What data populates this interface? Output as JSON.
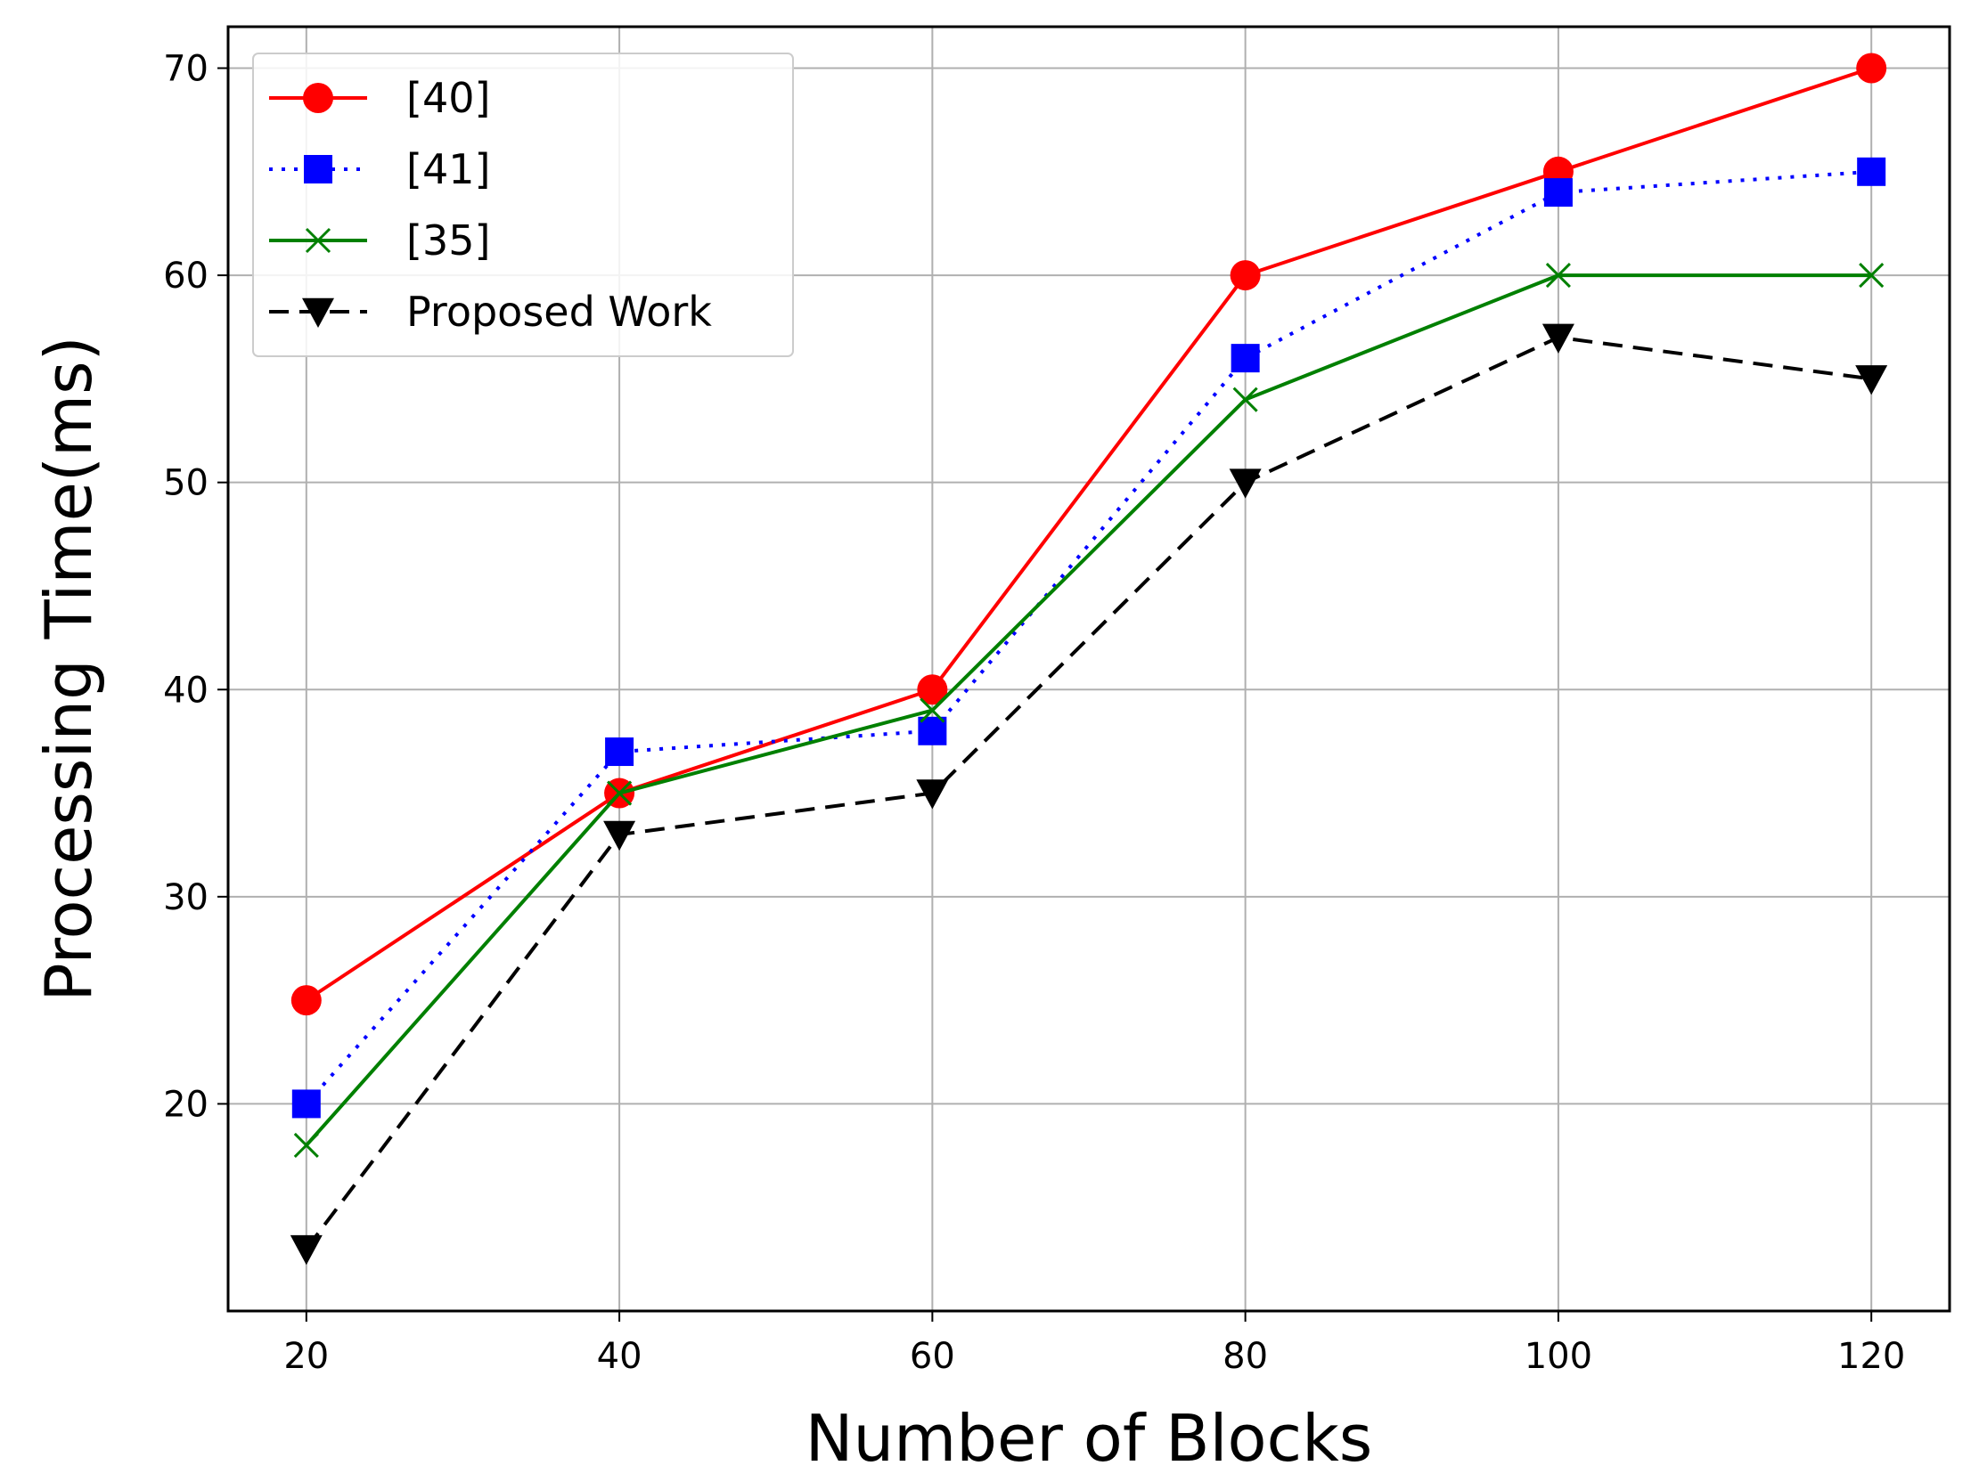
{
  "chart_data": {
    "type": "line",
    "title": "",
    "xlabel": "Number of Blocks",
    "ylabel": "Processing Time(ms)",
    "x": [
      20,
      40,
      60,
      80,
      100,
      120
    ],
    "xticks": [
      "20",
      "40",
      "60",
      "80",
      "100",
      "120"
    ],
    "yticks": [
      "20",
      "30",
      "40",
      "50",
      "60",
      "70"
    ],
    "xlim": [
      15,
      125
    ],
    "ylim": [
      10,
      72
    ],
    "grid": true,
    "legend_position": "upper-left",
    "series": [
      {
        "name": "[40]",
        "values": [
          25,
          35,
          40,
          60,
          65,
          70
        ],
        "color": "#ff0000",
        "line_style": "solid",
        "marker": "circle"
      },
      {
        "name": "[41]",
        "values": [
          20,
          37,
          38,
          56,
          64,
          65
        ],
        "color": "#0000ff",
        "line_style": "dotted",
        "marker": "square"
      },
      {
        "name": "[35]",
        "values": [
          18,
          35,
          39,
          54,
          60,
          60
        ],
        "color": "#008000",
        "line_style": "solid",
        "marker": "x"
      },
      {
        "name": "Proposed Work",
        "values": [
          13,
          33,
          35,
          50,
          57,
          55
        ],
        "color": "#000000",
        "line_style": "dashed",
        "marker": "triangle-down"
      }
    ]
  }
}
